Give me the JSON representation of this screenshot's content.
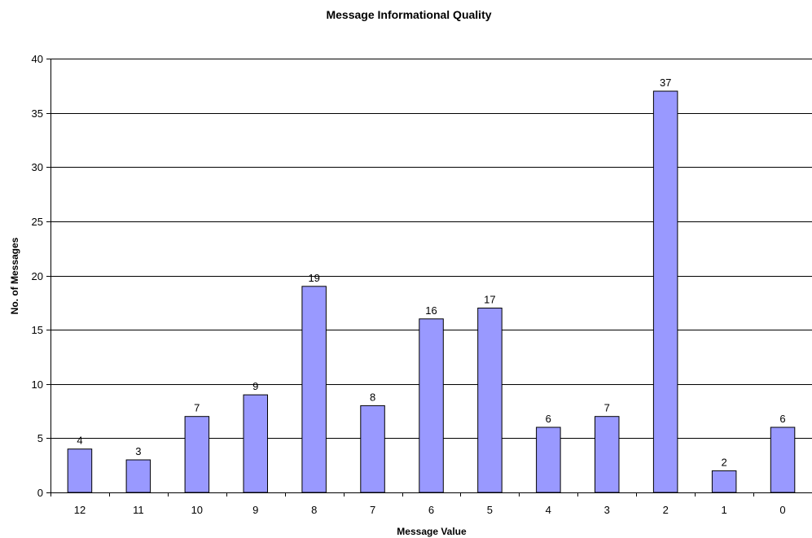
{
  "chart_data": {
    "type": "bar",
    "title": "Message Informational Quality",
    "xlabel": "Message Value",
    "ylabel": "No. of Messages",
    "categories": [
      "12",
      "11",
      "10",
      "9",
      "8",
      "7",
      "6",
      "5",
      "4",
      "3",
      "2",
      "1",
      "0"
    ],
    "values": [
      4,
      3,
      7,
      9,
      19,
      8,
      16,
      17,
      6,
      7,
      37,
      2,
      6
    ],
    "ylim": [
      0,
      40
    ],
    "yticks": [
      0,
      5,
      10,
      15,
      20,
      25,
      30,
      35,
      40
    ],
    "grid": true,
    "data_labels": true,
    "legend": "none",
    "colors": {
      "bar_fill": "#9999ff",
      "bar_stroke": "#000000",
      "grid": "#000000",
      "axis": "#000000"
    }
  }
}
